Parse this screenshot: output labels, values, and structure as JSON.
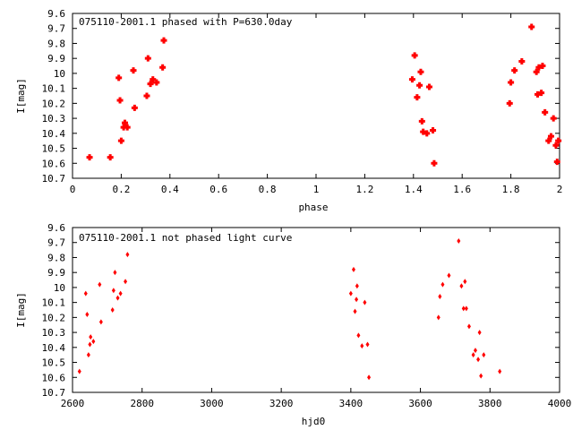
{
  "chart_data": [
    {
      "type": "scatter",
      "title": "075110-2001.1 phased with P=630.0day",
      "xlabel": "phase",
      "ylabel": "I[mag]",
      "xlim": [
        0,
        2
      ],
      "ylim": [
        10.7,
        9.6
      ],
      "y_inverted": true,
      "grid": false,
      "marker": "cross",
      "color": "#ff0000",
      "xticks": [
        "0",
        "0.2",
        "0.4",
        "0.6",
        "0.8",
        "1",
        "1.2",
        "1.4",
        "1.6",
        "1.8",
        "2"
      ],
      "yticks": [
        "9.6",
        "9.7",
        "9.8",
        "9.9",
        "10",
        "10.1",
        "10.2",
        "10.3",
        "10.4",
        "10.5",
        "10.6",
        "10.7"
      ],
      "series": [
        {
          "x": [
            0.07,
            0.155,
            0.19,
            0.195,
            0.2,
            0.21,
            0.215,
            0.225,
            0.25,
            0.255,
            0.305,
            0.31,
            0.32,
            0.33,
            0.345,
            0.37,
            0.375,
            1.395,
            1.405,
            1.415,
            1.425,
            1.43,
            1.435,
            1.44,
            1.455,
            1.465,
            1.48,
            1.485,
            1.795,
            1.8,
            1.815,
            1.845,
            1.885,
            1.905,
            1.91,
            1.915,
            1.925,
            1.93,
            1.94,
            1.955,
            1.965,
            1.975,
            1.985,
            1.99,
            1.995
          ],
          "y": [
            10.56,
            10.56,
            10.03,
            10.18,
            10.45,
            10.36,
            10.33,
            10.36,
            9.98,
            10.23,
            10.15,
            9.9,
            10.07,
            10.04,
            10.06,
            9.96,
            9.78,
            10.04,
            9.88,
            10.16,
            10.08,
            9.99,
            10.32,
            10.39,
            10.4,
            10.09,
            10.38,
            10.6,
            10.2,
            10.06,
            9.98,
            9.92,
            9.69,
            9.99,
            10.14,
            9.96,
            10.13,
            9.95,
            10.26,
            10.45,
            10.42,
            10.3,
            10.48,
            10.59,
            10.45
          ]
        }
      ]
    },
    {
      "type": "scatter",
      "title": "075110-2001.1 not phased light curve",
      "xlabel": "hjd0",
      "ylabel": "I[mag]",
      "xlim": [
        2600,
        4000
      ],
      "ylim": [
        10.7,
        9.6
      ],
      "y_inverted": true,
      "grid": false,
      "marker": "diamond",
      "color": "#ff0000",
      "xticks": [
        "2600",
        "2800",
        "3000",
        "3200",
        "3400",
        "3600",
        "3800",
        "4000"
      ],
      "yticks": [
        "9.6",
        "9.7",
        "9.8",
        "9.9",
        "10",
        "10.1",
        "10.2",
        "10.3",
        "10.4",
        "10.5",
        "10.6",
        "10.7"
      ],
      "series": [
        {
          "x": [
            2620,
            2638,
            2642,
            2646,
            2650,
            2652,
            2660,
            2678,
            2682,
            2715,
            2718,
            2722,
            2730,
            2738,
            2752,
            2758,
            3400,
            3408,
            3412,
            3416,
            3418,
            3422,
            3432,
            3440,
            3448,
            3452,
            3652,
            3656,
            3664,
            3682,
            3710,
            3718,
            3724,
            3728,
            3732,
            3740,
            3752,
            3758,
            3766,
            3770,
            3774,
            3782,
            3828
          ],
          "y": [
            10.56,
            10.04,
            10.18,
            10.45,
            10.38,
            10.33,
            10.36,
            9.98,
            10.23,
            10.15,
            10.02,
            9.9,
            10.07,
            10.04,
            9.96,
            9.78,
            10.04,
            9.88,
            10.16,
            10.08,
            9.99,
            10.32,
            10.39,
            10.1,
            10.38,
            10.6,
            10.2,
            10.06,
            9.98,
            9.92,
            9.69,
            9.99,
            10.14,
            9.96,
            10.14,
            10.26,
            10.45,
            10.42,
            10.48,
            10.3,
            10.59,
            10.45,
            10.56
          ]
        }
      ]
    }
  ]
}
